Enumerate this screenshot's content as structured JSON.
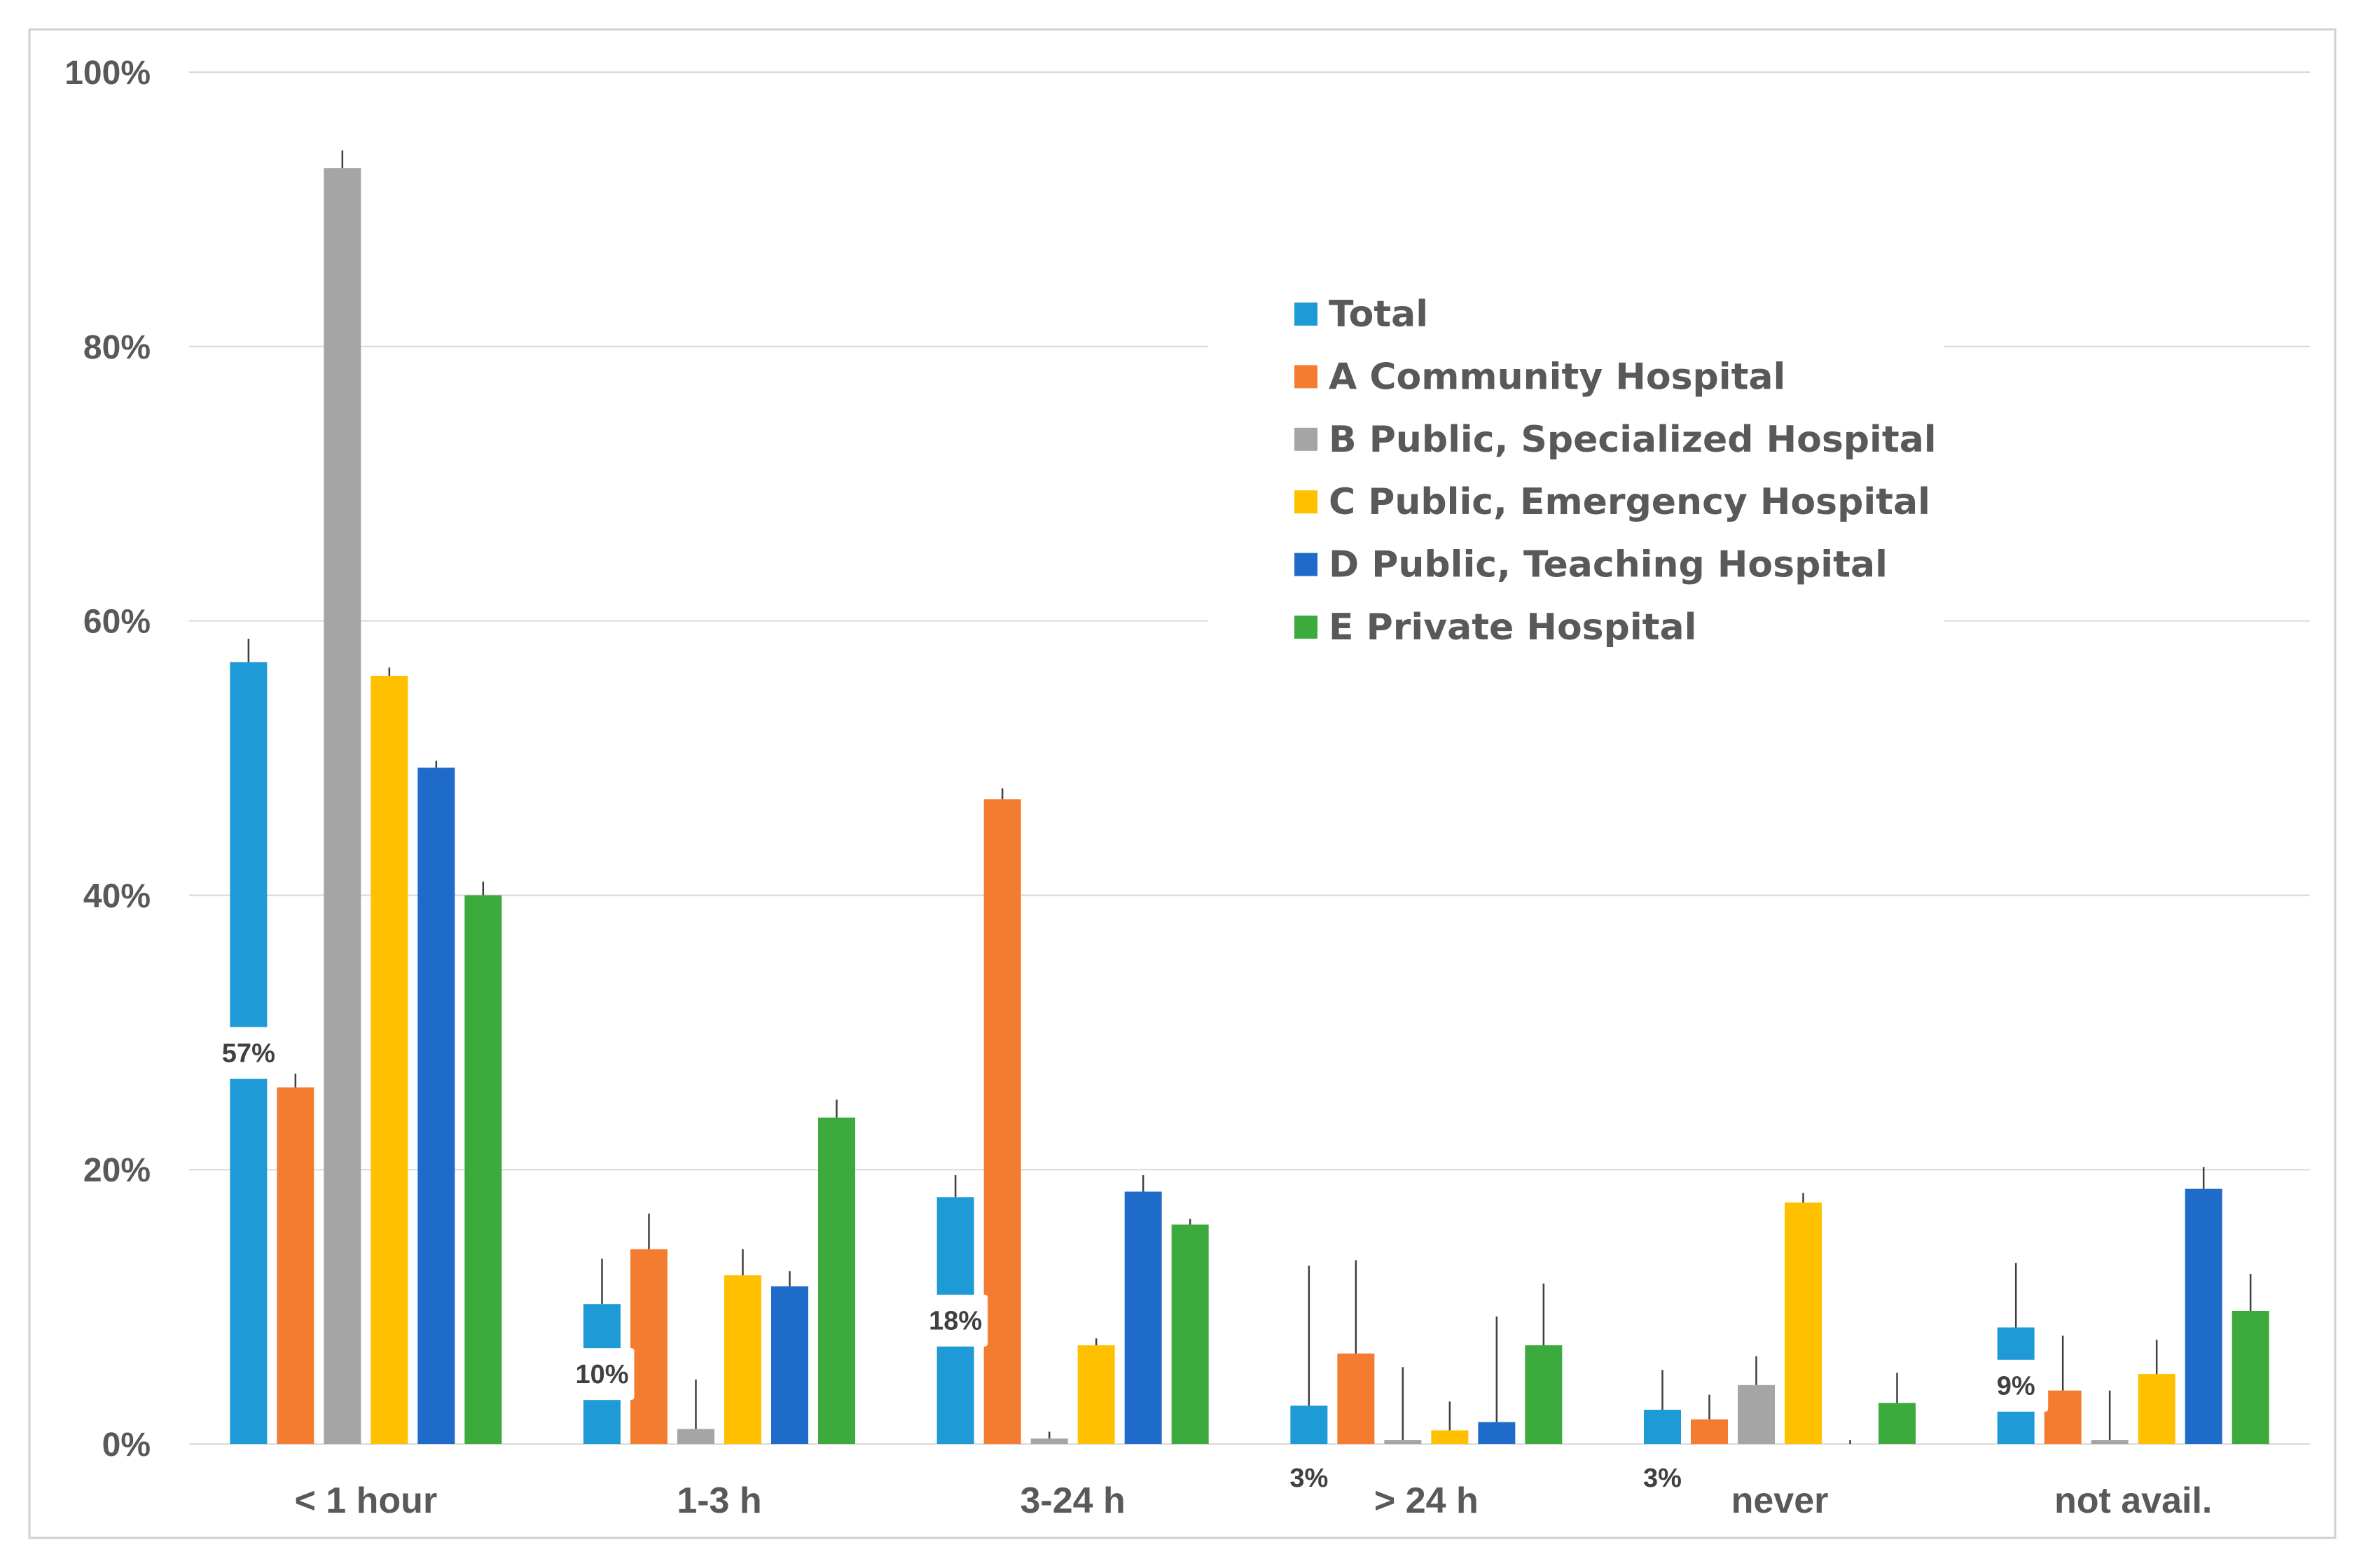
{
  "chart_data": {
    "type": "bar",
    "title": "",
    "xlabel": "",
    "ylabel": "",
    "ylim": [
      0,
      100
    ],
    "y_ticks": [
      {
        "value": 0,
        "label": "0%"
      },
      {
        "value": 20,
        "label": "20%"
      },
      {
        "value": 40,
        "label": "40%"
      },
      {
        "value": 60,
        "label": "60%"
      },
      {
        "value": 80,
        "label": "80%"
      },
      {
        "value": 100,
        "label": "100%"
      }
    ],
    "grid": true,
    "legend_position": "top-right",
    "categories": [
      "< 1 hour",
      "1-3 h",
      "3-24 h",
      "> 24 h",
      "never",
      "not avail."
    ],
    "series": [
      {
        "name": "Total",
        "color": "#1E9BD7",
        "values": [
          57,
          10.2,
          18,
          2.8,
          2.5,
          8.5
        ],
        "errors": [
          1.7,
          3.3,
          1.6,
          10.2,
          2.9,
          4.7
        ]
      },
      {
        "name": "A Community Hospital",
        "color": "#F47C30",
        "values": [
          26,
          14.2,
          47,
          6.6,
          1.8,
          3.9
        ],
        "errors": [
          1.0,
          2.6,
          0.8,
          6.8,
          1.8,
          4.0
        ]
      },
      {
        "name": "B Public, Specialized Hospital",
        "color": "#A5A5A5",
        "values": [
          93,
          1.1,
          0.4,
          0.3,
          4.3,
          0.3
        ],
        "errors": [
          1.3,
          3.6,
          0.5,
          5.3,
          2.1,
          3.6
        ]
      },
      {
        "name": "C Public, Emergency Hospital",
        "color": "#FFC000",
        "values": [
          56,
          12.3,
          7.2,
          1.0,
          17.6,
          5.1
        ],
        "errors": [
          0.6,
          1.9,
          0.5,
          2.1,
          0.7,
          2.5
        ]
      },
      {
        "name": "D Public, Teaching Hospital",
        "color": "#1F6BC9",
        "values": [
          49.3,
          11.5,
          18.4,
          1.6,
          0,
          18.6
        ],
        "errors": [
          0.5,
          1.1,
          1.2,
          7.7,
          0.3,
          1.6
        ]
      },
      {
        "name": "E Private Hospital",
        "color": "#3DAA3D",
        "values": [
          40,
          23.8,
          16,
          7.2,
          3.0,
          9.7
        ],
        "errors": [
          1.0,
          1.3,
          0.4,
          4.5,
          2.2,
          2.7
        ]
      }
    ],
    "data_labels": [
      {
        "category": 0,
        "series": "Total",
        "text": "57%"
      },
      {
        "category": 1,
        "series": "Total",
        "text": "10%"
      },
      {
        "category": 2,
        "series": "Total",
        "text": "18%"
      },
      {
        "category": 3,
        "series": "Total",
        "text": "3%"
      },
      {
        "category": 4,
        "series": "Total",
        "text": "3%"
      },
      {
        "category": 5,
        "series": "Total",
        "text": "9%"
      }
    ],
    "colors": {
      "gridline": "#D9D9D9",
      "axis_text": "#595959",
      "frame": "#D0D0D0",
      "error_bar": "#404040"
    }
  }
}
